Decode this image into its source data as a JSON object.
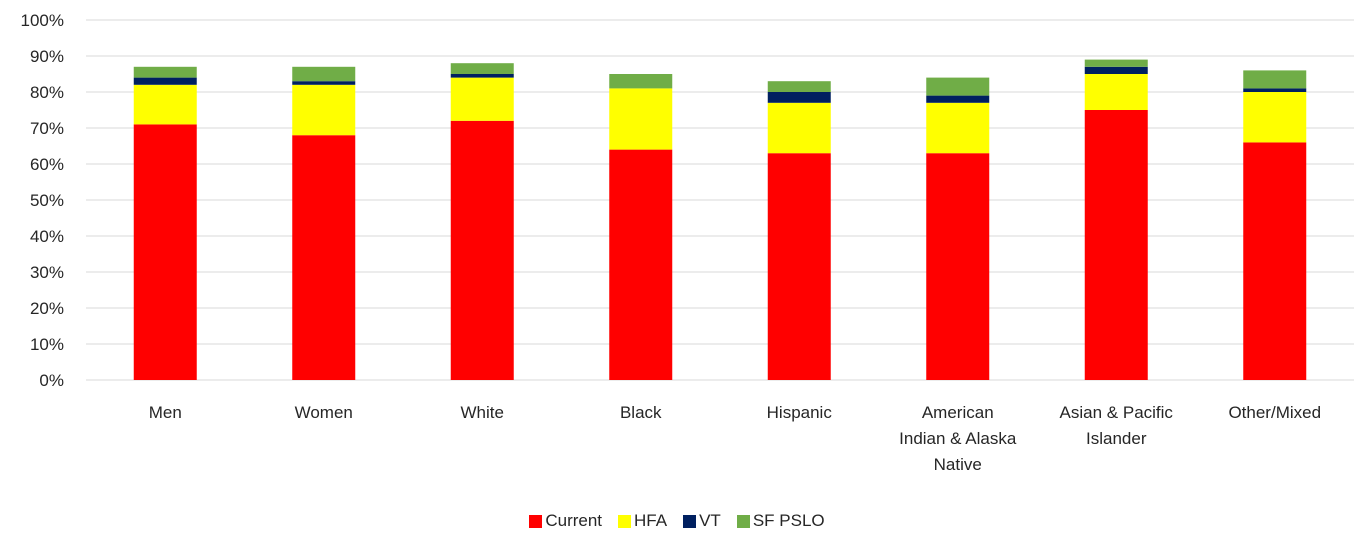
{
  "chart_data": {
    "type": "bar",
    "stacked": true,
    "categories": [
      "Men",
      "Women",
      "White",
      "Black",
      "Hispanic",
      "American Indian & Alaska Native",
      "Asian & Pacific Islander",
      "Other/Mixed"
    ],
    "category_label_lines": [
      [
        "Men"
      ],
      [
        "Women"
      ],
      [
        "White"
      ],
      [
        "Black"
      ],
      [
        "Hispanic"
      ],
      [
        "American",
        "Indian & Alaska",
        "Native"
      ],
      [
        "Asian & Pacific",
        "Islander"
      ],
      [
        "Other/Mixed"
      ]
    ],
    "series": [
      {
        "name": "Current",
        "color": "#ff0000",
        "values": [
          71,
          68,
          72,
          64,
          63,
          63,
          75,
          66
        ]
      },
      {
        "name": "HFA",
        "color": "#ffff00",
        "values": [
          11,
          14,
          12,
          17,
          14,
          14,
          10,
          14
        ]
      },
      {
        "name": "VT",
        "color": "#002060",
        "values": [
          2,
          1,
          1,
          0,
          3,
          2,
          2,
          1
        ]
      },
      {
        "name": "SF PSLO",
        "color": "#70ad47",
        "values": [
          3,
          4,
          3,
          4,
          3,
          5,
          2,
          5
        ]
      }
    ],
    "ylim": [
      0,
      100
    ],
    "y_ticks": [
      "0%",
      "10%",
      "20%",
      "30%",
      "40%",
      "50%",
      "60%",
      "70%",
      "80%",
      "90%",
      "100%"
    ],
    "grid": true,
    "legend_position": "bottom",
    "title": "",
    "xlabel": "",
    "ylabel": ""
  }
}
